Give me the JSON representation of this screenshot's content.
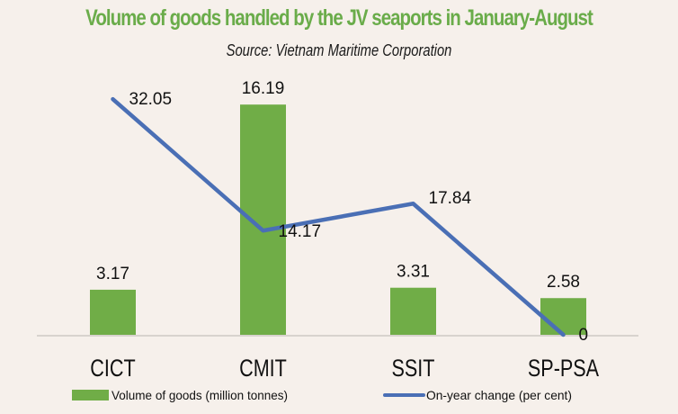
{
  "chart_data": {
    "type": "bar",
    "title": "Volume of goods handled by the JV seaports in January-August",
    "subtitle": "Source: Vietnam Maritime Corporation",
    "categories": [
      "CICT",
      "CMIT",
      "SSIT",
      "SP-PSA"
    ],
    "series": [
      {
        "name": "Volume of goods (million tonnes)",
        "type": "bar",
        "color": "#70ad47",
        "values": [
          3.17,
          16.19,
          3.31,
          2.58
        ]
      },
      {
        "name": "On-year change (per cent)",
        "type": "line",
        "color": "#4a6fb5",
        "values": [
          32.05,
          14.17,
          17.84,
          0
        ]
      }
    ],
    "xlabel": "",
    "ylabel": "",
    "grid": false,
    "legend": "bottom"
  }
}
